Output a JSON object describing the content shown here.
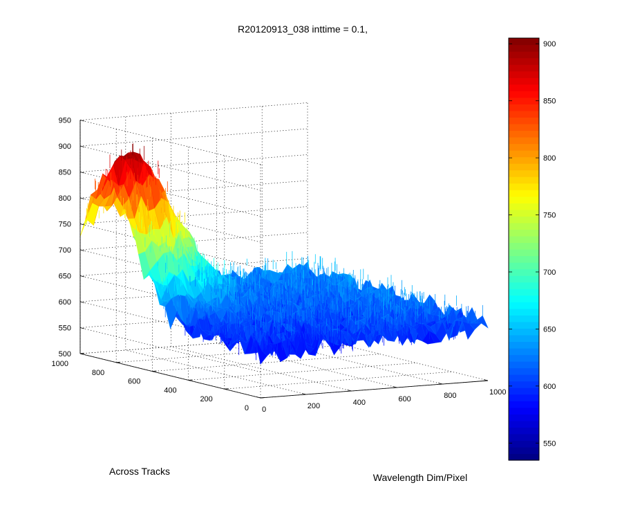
{
  "chart_data": {
    "type": "surface",
    "title": "R20120913_038 inttime = 0.1,",
    "xlabel": "Wavelength Dim/Pixel",
    "ylabel": "Across Tracks",
    "zlabel": "",
    "xlim": [
      0,
      1000
    ],
    "ylim": [
      0,
      1000
    ],
    "zlim": [
      500,
      950
    ],
    "x_ticks": [
      0,
      200,
      400,
      600,
      800,
      1000
    ],
    "y_ticks": [
      0,
      200,
      400,
      600,
      800,
      1000
    ],
    "z_ticks": [
      500,
      550,
      600,
      650,
      700,
      750,
      800,
      850,
      900,
      950
    ],
    "x_tick_labels": [
      "0",
      "200",
      "400",
      "600",
      "800",
      "1000"
    ],
    "y_tick_labels": [
      "0",
      "200",
      "400",
      "600",
      "800",
      "1000"
    ],
    "z_tick_labels": [
      "500",
      "550",
      "600",
      "650",
      "700",
      "750",
      "800",
      "850",
      "900",
      "950"
    ],
    "colorbar": {
      "clim": [
        535,
        905
      ],
      "ticks": [
        550,
        600,
        650,
        700,
        750,
        800,
        850,
        900
      ],
      "tick_labels": [
        "550",
        "600",
        "650",
        "700",
        "750",
        "800",
        "850",
        "900"
      ],
      "colormap": "jet"
    },
    "surface": {
      "baseline_near_origin": 590,
      "baseline_far_corner": 625,
      "noise_amplitude": 25,
      "peak": {
        "x": 100,
        "y": 850,
        "z": 880
      }
    },
    "grid": true,
    "view": "3d-oblique"
  }
}
